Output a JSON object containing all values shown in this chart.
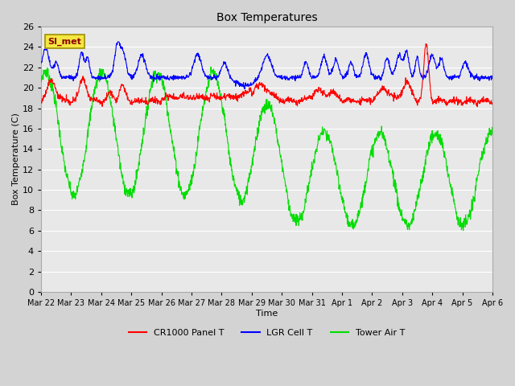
{
  "title": "Box Temperatures",
  "xlabel": "Time",
  "ylabel": "Box Temperature (C)",
  "ylim": [
    0,
    26
  ],
  "yticks": [
    0,
    2,
    4,
    6,
    8,
    10,
    12,
    14,
    16,
    18,
    20,
    22,
    24,
    26
  ],
  "fig_bg_color": "#d3d3d3",
  "plot_bg_color": "#e8e8e8",
  "legend_entries": [
    "CR1000 Panel T",
    "LGR Cell T",
    "Tower Air T"
  ],
  "legend_colors": [
    "red",
    "blue",
    "lime"
  ],
  "watermark_text": "SI_met",
  "x_labels": [
    "Mar 22",
    "Mar 23",
    "Mar 24",
    "Mar 25",
    "Mar 26",
    "Mar 27",
    "Mar 28",
    "Mar 29",
    "Mar 30",
    "Mar 31",
    "Apr 1",
    "Apr 2",
    "Apr 3",
    "Apr 4",
    "Apr 5",
    "Apr 6"
  ],
  "n_points": 1500
}
